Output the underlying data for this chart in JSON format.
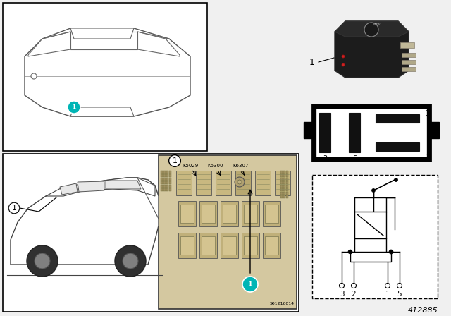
{
  "part_number": "412885",
  "background_color": "#f0f0f0",
  "white": "#ffffff",
  "black": "#000000",
  "teal_color": "#00b5b5",
  "fuse_box_labels": [
    "K5029",
    "K6300",
    "K6307"
  ],
  "relay_pin_labels": [
    "3",
    "2",
    "1",
    "5"
  ]
}
